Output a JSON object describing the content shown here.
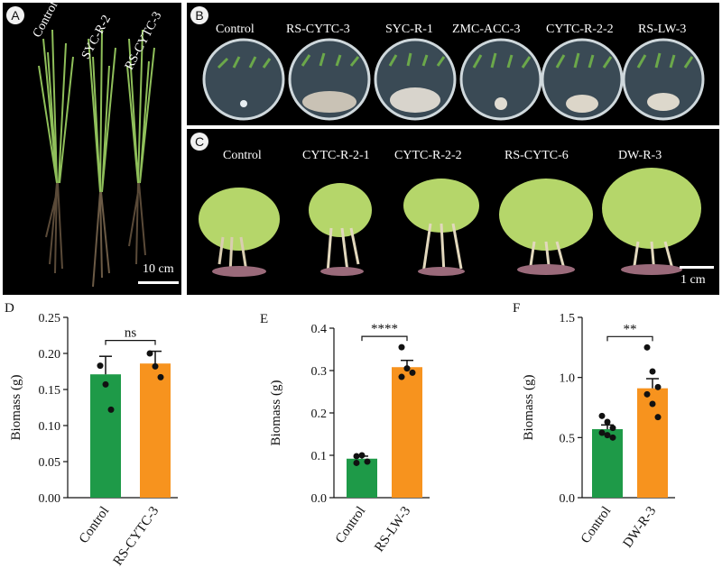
{
  "panel_a": {
    "letter": "A",
    "labels": [
      "Control",
      "SYC-R-2",
      "RS-CYTC-3"
    ],
    "scale": "10 cm"
  },
  "panel_b": {
    "letter": "B",
    "labels": [
      "Control",
      "RS-CYTC-3",
      "SYC-R-1",
      "ZMC-ACC-3",
      "CYTC-R-2-2",
      "RS-LW-3"
    ]
  },
  "panel_c": {
    "letter": "C",
    "labels": [
      "Control",
      "CYTC-R-2-1",
      "CYTC-R-2-2",
      "RS-CYTC-6",
      "DW-R-3"
    ],
    "scale": "1 cm"
  },
  "colors": {
    "control": "#1e9a48",
    "treatment": "#f7931e",
    "plant": "#b5d66a",
    "root": "#c9b89a"
  },
  "chart_data": [
    {
      "panel": "D",
      "type": "bar",
      "categories": [
        "Control",
        "RS-CYTC-3"
      ],
      "values": [
        0.171,
        0.186
      ],
      "sem": [
        0.025,
        0.017
      ],
      "points": [
        [
          0.183,
          0.157,
          0.122
        ],
        [
          0.2,
          0.182,
          0.167
        ]
      ],
      "ylabel": "Biomass (g)",
      "ylim": [
        0,
        0.25
      ],
      "yticks": [
        "0.00",
        "0.05",
        "0.10",
        "0.15",
        "0.20",
        "0.25"
      ],
      "significance": "ns"
    },
    {
      "panel": "E",
      "type": "bar",
      "categories": [
        "Control",
        "RS-LW-3"
      ],
      "values": [
        0.092,
        0.308
      ],
      "sem": [
        0.006,
        0.016
      ],
      "points": [
        [
          0.098,
          0.1,
          0.085,
          0.082
        ],
        [
          0.355,
          0.305,
          0.295,
          0.285
        ]
      ],
      "ylabel": "Biomass (g)",
      "ylim": [
        0,
        0.4
      ],
      "yticks": [
        "0.0",
        "0.1",
        "0.2",
        "0.3",
        "0.4"
      ],
      "significance": "****"
    },
    {
      "panel": "F",
      "type": "bar",
      "categories": [
        "Control",
        "DW-R-3"
      ],
      "values": [
        0.57,
        0.91
      ],
      "sem": [
        0.035,
        0.08
      ],
      "points": [
        [
          0.68,
          0.63,
          0.58,
          0.54,
          0.52,
          0.5
        ],
        [
          1.25,
          1.05,
          0.92,
          0.86,
          0.78,
          0.67
        ]
      ],
      "ylabel": "Biomass (g)",
      "ylim": [
        0,
        1.5
      ],
      "yticks": [
        "0.0",
        "0.5",
        "1.0",
        "1.5"
      ],
      "significance": "**"
    }
  ]
}
